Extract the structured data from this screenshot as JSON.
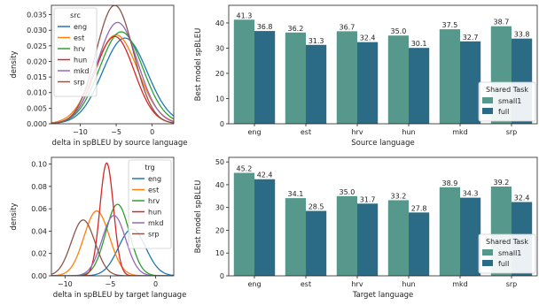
{
  "colors": {
    "eng": "#1f77b4",
    "est": "#ff7f0e",
    "hrv": "#2ca02c",
    "hun": "#d62728",
    "mkd": "#9467bd",
    "srp": "#8c564b",
    "small1": "#56988c",
    "full": "#2b6b85"
  },
  "chart_data": [
    {
      "id": "kde_src",
      "type": "line",
      "xlabel": "delta in spBLEU by source language",
      "ylabel": "density",
      "xlim": [
        -14,
        3
      ],
      "ylim": [
        0,
        0.038
      ],
      "xticks": [
        -10,
        -5,
        0
      ],
      "yticks": [
        0.0,
        0.005,
        0.01,
        0.015,
        0.02,
        0.025,
        0.03,
        0.035
      ],
      "ytick_labels": [
        "0.000",
        "0.005",
        "0.010",
        "0.015",
        "0.020",
        "0.025",
        "0.030",
        "0.035"
      ],
      "legend": {
        "title": "src",
        "position": "top-left"
      },
      "series": [
        {
          "name": "eng",
          "mu": -3.8,
          "sigma": 3.1,
          "peak": 0.0275
        },
        {
          "name": "est",
          "mu": -5.0,
          "sigma": 3.0,
          "peak": 0.0285
        },
        {
          "name": "hrv",
          "mu": -4.3,
          "sigma": 3.0,
          "peak": 0.0295
        },
        {
          "name": "hun",
          "mu": -5.2,
          "sigma": 2.7,
          "peak": 0.028
        },
        {
          "name": "mkd",
          "mu": -4.8,
          "sigma": 2.8,
          "peak": 0.0325
        },
        {
          "name": "srp",
          "mu": -5.2,
          "sigma": 2.6,
          "peak": 0.038
        }
      ]
    },
    {
      "id": "bar_src",
      "type": "bar",
      "xlabel": "Source language",
      "ylabel": "Best model spBLEU",
      "ylim": [
        0,
        47
      ],
      "yticks": [
        0,
        10,
        20,
        30,
        40
      ],
      "categories": [
        "eng",
        "est",
        "hrv",
        "hun",
        "mkd",
        "srp"
      ],
      "legend": {
        "title": "Shared Task",
        "position": "lower-right"
      },
      "series": [
        {
          "name": "small1",
          "values": [
            41.3,
            36.2,
            36.7,
            35.0,
            37.5,
            38.7
          ],
          "labels": [
            "41.3",
            "36.2",
            "36.7",
            "35.0",
            "37.5",
            "38.7"
          ]
        },
        {
          "name": "full",
          "values": [
            36.8,
            31.3,
            32.4,
            30.1,
            32.7,
            33.8
          ],
          "labels": [
            "36.8",
            "31.3",
            "32.4",
            "30.1",
            "32.7",
            "33.8"
          ]
        }
      ]
    },
    {
      "id": "kde_trg",
      "type": "line",
      "xlabel": "delta in spBLEU by target language",
      "ylabel": "density",
      "xlim": [
        -11.5,
        2
      ],
      "ylim": [
        0,
        0.106
      ],
      "xticks": [
        -10,
        -5,
        0
      ],
      "yticks": [
        0.0,
        0.02,
        0.04,
        0.06,
        0.08,
        0.1
      ],
      "ytick_labels": [
        "0.00",
        "0.02",
        "0.04",
        "0.06",
        "0.08",
        "0.10"
      ],
      "legend": {
        "title": "trg",
        "position": "top-right"
      },
      "series": [
        {
          "name": "eng",
          "mu": -2.6,
          "sigma": 1.5,
          "peak": 0.042
        },
        {
          "name": "est",
          "mu": -6.5,
          "sigma": 1.4,
          "peak": 0.058
        },
        {
          "name": "hrv",
          "mu": -4.2,
          "sigma": 1.3,
          "peak": 0.064
        },
        {
          "name": "hun",
          "mu": -5.4,
          "sigma": 0.75,
          "peak": 0.101
        },
        {
          "name": "mkd",
          "mu": -4.6,
          "sigma": 1.3,
          "peak": 0.054
        },
        {
          "name": "srp",
          "mu": -8.0,
          "sigma": 1.3,
          "peak": 0.05
        }
      ]
    },
    {
      "id": "bar_trg",
      "type": "bar",
      "xlabel": "Target language",
      "ylabel": "Best model spBLEU",
      "ylim": [
        0,
        52
      ],
      "yticks": [
        0,
        10,
        20,
        30,
        40,
        50
      ],
      "categories": [
        "eng",
        "est",
        "hrv",
        "hun",
        "mkd",
        "srp"
      ],
      "legend": {
        "title": "Shared Task",
        "position": "lower-right"
      },
      "series": [
        {
          "name": "small1",
          "values": [
            45.2,
            34.1,
            35.0,
            33.2,
            38.9,
            39.2
          ],
          "labels": [
            "45.2",
            "34.1",
            "35.0",
            "33.2",
            "38.9",
            "39.2"
          ]
        },
        {
          "name": "full",
          "values": [
            42.4,
            28.5,
            31.7,
            27.8,
            34.3,
            32.4
          ],
          "labels": [
            "42.4",
            "28.5",
            "31.7",
            "27.8",
            "34.3",
            "32.4"
          ]
        }
      ]
    }
  ]
}
